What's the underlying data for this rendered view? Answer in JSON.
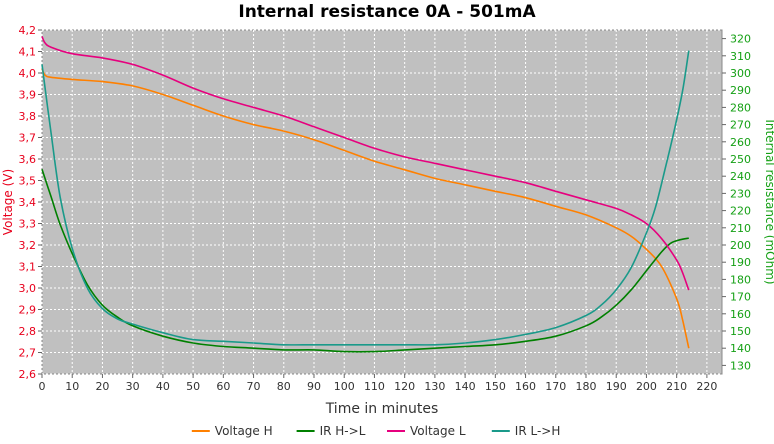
{
  "chart_data": {
    "type": "line",
    "title": "Internal resistance  0A - 501mA",
    "xlabel": "Time in minutes",
    "ylabel_left": "Voltage (V)",
    "ylabel_right": "Internal resistance (mOhm)",
    "xlim": [
      0,
      225
    ],
    "ylim_left": [
      2.6,
      4.2
    ],
    "ylim_right": [
      125,
      325
    ],
    "xticks": [
      0,
      10,
      20,
      30,
      40,
      50,
      60,
      70,
      80,
      90,
      100,
      110,
      120,
      130,
      140,
      150,
      160,
      170,
      180,
      190,
      200,
      210,
      220
    ],
    "yticks_left": [
      "2,6",
      "2,7",
      "2,8",
      "2,9",
      "3,0",
      "3,1",
      "3,2",
      "3,3",
      "3,4",
      "3,5",
      "3,6",
      "3,7",
      "3,8",
      "3,9",
      "4,0",
      "4,1",
      "4,2"
    ],
    "yticks_right": [
      130,
      140,
      150,
      160,
      170,
      180,
      190,
      200,
      210,
      220,
      230,
      240,
      250,
      260,
      270,
      280,
      290,
      300,
      310,
      320
    ],
    "grid": true,
    "legend_position": "bottom",
    "background": "#c0c0c0",
    "series": [
      {
        "name": "Voltage H",
        "axis": "left",
        "color": "#ff8000",
        "x": [
          0,
          1,
          3,
          10,
          20,
          30,
          40,
          50,
          60,
          70,
          80,
          90,
          100,
          110,
          120,
          130,
          140,
          150,
          160,
          170,
          180,
          190,
          195,
          200,
          205,
          210,
          212,
          214
        ],
        "y": [
          4.02,
          3.99,
          3.98,
          3.97,
          3.96,
          3.94,
          3.9,
          3.85,
          3.8,
          3.76,
          3.73,
          3.69,
          3.64,
          3.59,
          3.55,
          3.51,
          3.48,
          3.45,
          3.42,
          3.38,
          3.34,
          3.28,
          3.24,
          3.18,
          3.1,
          2.95,
          2.85,
          2.72
        ]
      },
      {
        "name": "IR H->L",
        "axis": "right",
        "color": "#008000",
        "x": [
          0,
          3,
          6,
          10,
          15,
          20,
          25,
          30,
          40,
          50,
          60,
          70,
          80,
          90,
          100,
          110,
          120,
          130,
          140,
          150,
          160,
          170,
          180,
          185,
          190,
          195,
          200,
          205,
          208,
          211,
          214
        ],
        "y": [
          244,
          228,
          212,
          195,
          177,
          165,
          158,
          153,
          147,
          143,
          141,
          140,
          139,
          139,
          138,
          138,
          139,
          140,
          141,
          142,
          144,
          147,
          153,
          158,
          165,
          174,
          185,
          196,
          201,
          203,
          204
        ]
      },
      {
        "name": "Voltage L",
        "axis": "left",
        "color": "#e6007e",
        "x": [
          0,
          1,
          3,
          10,
          20,
          30,
          40,
          50,
          60,
          70,
          80,
          90,
          100,
          110,
          120,
          130,
          140,
          150,
          160,
          170,
          180,
          190,
          195,
          200,
          205,
          210,
          212,
          214
        ],
        "y": [
          4.17,
          4.14,
          4.12,
          4.09,
          4.07,
          4.04,
          3.99,
          3.93,
          3.88,
          3.84,
          3.8,
          3.75,
          3.7,
          3.65,
          3.61,
          3.58,
          3.55,
          3.52,
          3.49,
          3.45,
          3.41,
          3.37,
          3.34,
          3.3,
          3.23,
          3.13,
          3.07,
          2.99
        ]
      },
      {
        "name": "IR L->H",
        "axis": "right",
        "color": "#1a9a8a",
        "x": [
          0,
          3,
          6,
          10,
          15,
          20,
          25,
          30,
          40,
          50,
          60,
          70,
          80,
          90,
          100,
          110,
          120,
          130,
          140,
          150,
          160,
          170,
          180,
          185,
          190,
          195,
          200,
          203,
          206,
          209,
          212,
          214
        ],
        "y": [
          305,
          265,
          228,
          198,
          175,
          163,
          157,
          154,
          149,
          145,
          144,
          143,
          142,
          142,
          142,
          142,
          142,
          142,
          143,
          145,
          148,
          152,
          159,
          165,
          174,
          187,
          207,
          222,
          243,
          265,
          290,
          313
        ]
      }
    ]
  }
}
